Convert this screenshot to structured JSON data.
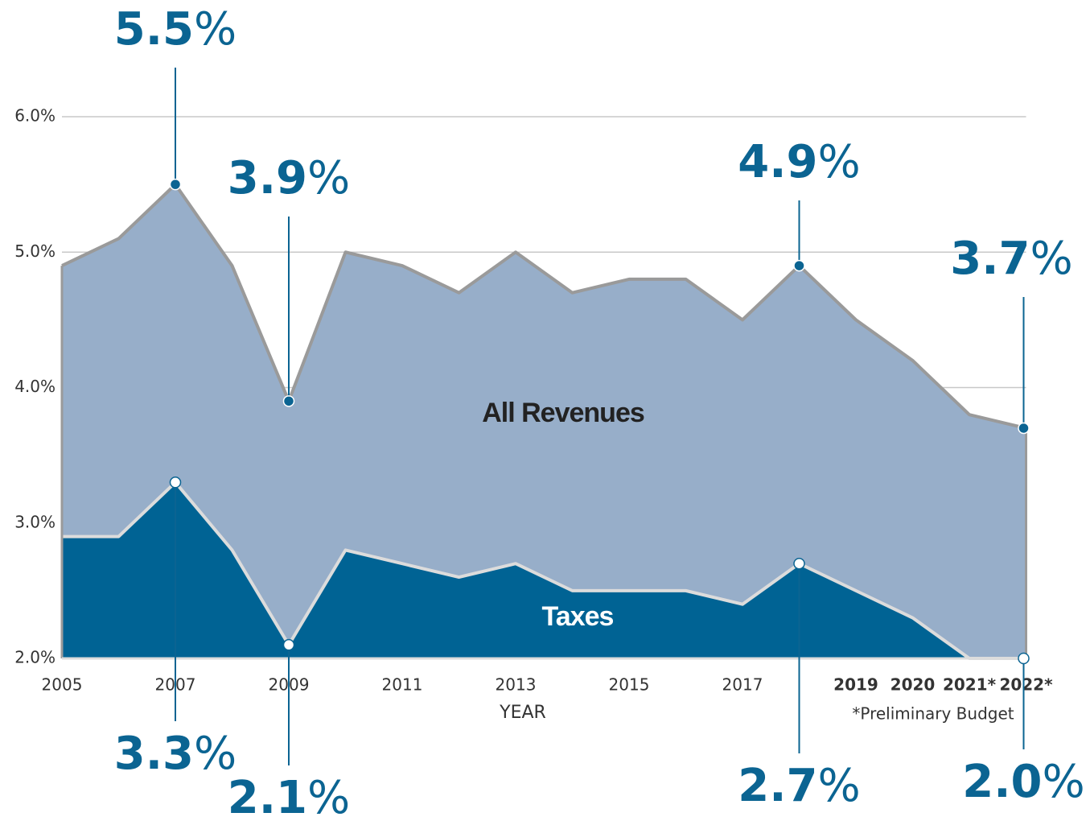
{
  "chart_data": {
    "type": "area",
    "categories": [
      "2005",
      null,
      "2007",
      null,
      "2009",
      null,
      "2011",
      null,
      "2013",
      null,
      "2015",
      null,
      "2017",
      null,
      "2019",
      "2020",
      "2021*",
      "2022*"
    ],
    "x_label": "YEAR",
    "note": "*Preliminary Budget",
    "ylim": [
      2.0,
      6.0
    ],
    "yticks": [
      {
        "value": 2.0,
        "label": "2.0%"
      },
      {
        "value": 3.0,
        "label": "3.0%"
      },
      {
        "value": 4.0,
        "label": "4.0%"
      },
      {
        "value": 5.0,
        "label": "5.0%"
      },
      {
        "value": 6.0,
        "label": "6.0%"
      }
    ],
    "grid": true,
    "series": [
      {
        "name": "All Revenues",
        "color": "#97aec9",
        "line_color": "#9a9a9a",
        "values": [
          4.9,
          5.1,
          5.5,
          4.9,
          3.9,
          5.0,
          4.9,
          4.7,
          5.0,
          4.7,
          4.8,
          4.8,
          4.5,
          4.9,
          4.5,
          4.2,
          3.8,
          3.7
        ],
        "value_labels": [
          null,
          null,
          "5.5%",
          null,
          "3.9%",
          null,
          null,
          null,
          null,
          null,
          null,
          null,
          null,
          "4.9%",
          null,
          null,
          null,
          "3.7%"
        ]
      },
      {
        "name": "Taxes",
        "color": "#006394",
        "line_color": "#dcdcdc",
        "values": [
          2.9,
          2.9,
          3.3,
          2.8,
          2.1,
          2.8,
          2.7,
          2.6,
          2.7,
          2.5,
          2.5,
          2.5,
          2.4,
          2.7,
          2.5,
          2.3,
          2.0,
          2.0
        ],
        "value_labels": [
          null,
          null,
          "3.3%",
          null,
          "2.1%",
          null,
          null,
          null,
          null,
          null,
          null,
          null,
          null,
          "2.7%",
          null,
          null,
          null,
          "2.0%"
        ]
      }
    ]
  }
}
